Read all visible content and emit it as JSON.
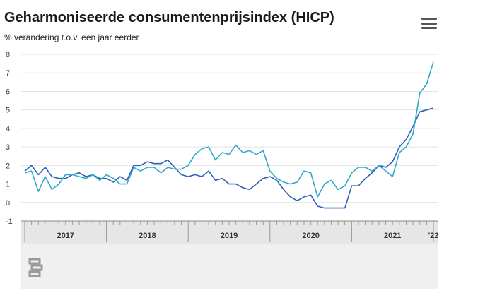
{
  "header": {
    "title": "Geharmoniseerde consumentenprijsindex (HICP)",
    "subtitle": "% verandering t.o.v. een jaar eerder"
  },
  "icons": {
    "menu": "hamburger-menu-icon",
    "logo": "cbs-logo-icon"
  },
  "chart_data": {
    "type": "line",
    "title": "Geharmoniseerde consumentenprijsindex (HICP)",
    "subtitle": "% verandering t.o.v. een jaar eerder",
    "ylim": [
      -1,
      8
    ],
    "y_ticks": [
      "8",
      "7",
      "6",
      "5",
      "4",
      "3",
      "2",
      "1",
      "0",
      "-1"
    ],
    "x_tick_labels": [
      "2017",
      "2018",
      "2019",
      "2020",
      "2021",
      "'22"
    ],
    "grid": true,
    "legend": "none",
    "series": [
      {
        "color": "#2b5fb8",
        "values": [
          1.7,
          2.0,
          1.5,
          1.9,
          1.4,
          1.3,
          1.3,
          1.5,
          1.6,
          1.4,
          1.5,
          1.3,
          1.3,
          1.1,
          1.4,
          1.2,
          2.0,
          2.0,
          2.2,
          2.1,
          2.1,
          2.3,
          1.9,
          1.5,
          1.4,
          1.5,
          1.4,
          1.7,
          1.2,
          1.3,
          1.0,
          1.0,
          0.8,
          0.7,
          1.0,
          1.3,
          1.4,
          1.2,
          0.7,
          0.3,
          0.1,
          0.3,
          0.4,
          -0.2,
          -0.3,
          -0.3,
          -0.3,
          -0.3,
          0.9,
          0.9,
          1.3,
          1.6,
          2.0,
          1.9,
          2.2,
          3.0,
          3.4,
          4.1,
          4.9,
          5.0,
          5.1
        ]
      },
      {
        "color": "#2fa8cc",
        "values": [
          1.6,
          1.7,
          0.6,
          1.4,
          0.7,
          1.0,
          1.5,
          1.5,
          1.4,
          1.3,
          1.5,
          1.2,
          1.5,
          1.3,
          1.0,
          1.0,
          1.9,
          1.7,
          1.9,
          1.9,
          1.6,
          1.9,
          1.8,
          1.8,
          2.0,
          2.6,
          2.9,
          3.0,
          2.3,
          2.7,
          2.6,
          3.1,
          2.7,
          2.8,
          2.6,
          2.8,
          1.7,
          1.3,
          1.1,
          1.0,
          1.1,
          1.7,
          1.6,
          0.3,
          1.0,
          1.2,
          0.7,
          0.9,
          1.6,
          1.9,
          1.9,
          1.7,
          2.0,
          1.7,
          1.4,
          2.7,
          3.0,
          3.7,
          5.9,
          6.4,
          7.6
        ]
      }
    ]
  }
}
